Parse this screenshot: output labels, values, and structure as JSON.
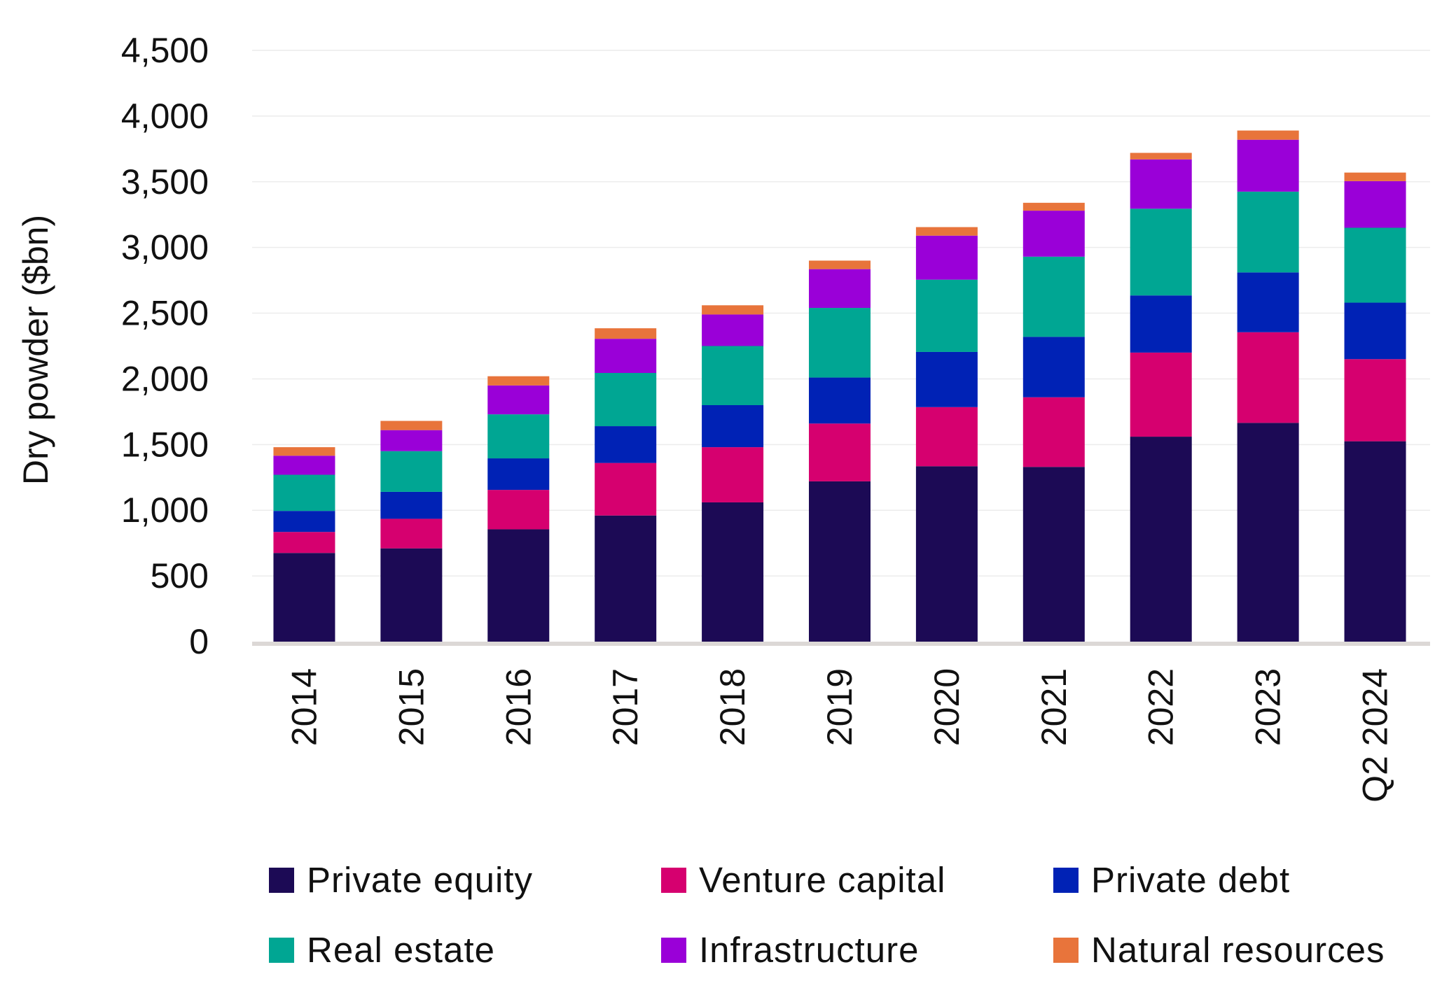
{
  "chart_data": {
    "type": "bar",
    "stacked": true,
    "ylabel": "Dry powder ($bn)",
    "xlabel": "",
    "ylim": [
      0,
      4500
    ],
    "yticks": [
      "0",
      "500",
      "1,000",
      "1,500",
      "2,000",
      "2,500",
      "3,000",
      "3,500",
      "4,000",
      "4,500"
    ],
    "ytick_values": [
      0,
      500,
      1000,
      1500,
      2000,
      2500,
      3000,
      3500,
      4000,
      4500
    ],
    "grid": true,
    "legend_position": "bottom",
    "categories": [
      "2014",
      "2015",
      "2016",
      "2017",
      "2018",
      "2019",
      "2020",
      "2021",
      "2022",
      "2023",
      "Q2 2024"
    ],
    "series": [
      {
        "name": "Private equity",
        "color": "#1c0a55",
        "values": [
          675,
          710,
          855,
          960,
          1060,
          1220,
          1335,
          1330,
          1560,
          1665,
          1525
        ]
      },
      {
        "name": "Venture capital",
        "color": "#d6006f",
        "values": [
          160,
          225,
          300,
          400,
          420,
          440,
          450,
          530,
          640,
          690,
          625
        ]
      },
      {
        "name": "Private debt",
        "color": "#0022b5",
        "values": [
          160,
          205,
          240,
          280,
          320,
          350,
          420,
          460,
          435,
          455,
          430
        ]
      },
      {
        "name": "Real estate",
        "color": "#00a693",
        "values": [
          275,
          310,
          335,
          405,
          450,
          530,
          550,
          610,
          660,
          615,
          570
        ]
      },
      {
        "name": "Infrastructure",
        "color": "#9a00d8",
        "values": [
          145,
          160,
          220,
          260,
          240,
          295,
          335,
          350,
          375,
          395,
          355
        ]
      },
      {
        "name": "Natural resources",
        "color": "#e8743b",
        "values": [
          65,
          70,
          70,
          80,
          70,
          65,
          65,
          60,
          50,
          70,
          65
        ]
      }
    ]
  }
}
